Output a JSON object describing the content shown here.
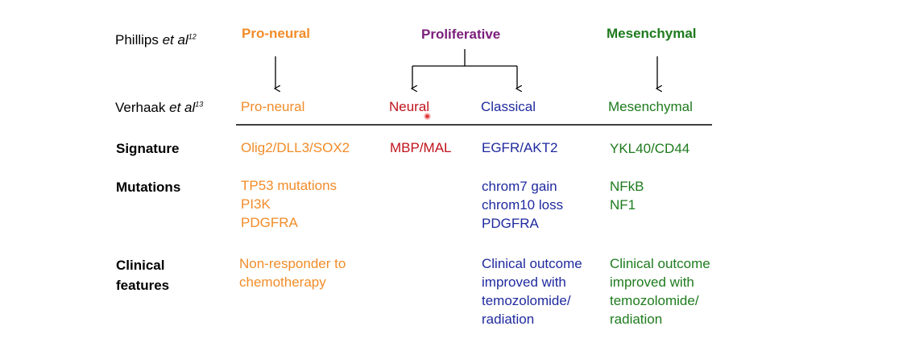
{
  "header": {
    "phillips": {
      "author": "Phillips ",
      "etal": "et al",
      "ref": "12"
    },
    "verhaak": {
      "author": "Verhaak ",
      "etal": "et al",
      "ref": "13"
    }
  },
  "phillips_classes": {
    "proneural": "Pro-neural",
    "proliferative": "Proliferative",
    "mesenchymal": "Mesenchymal"
  },
  "verhaak_classes": {
    "proneural": "Pro-neural",
    "neural": "Neural",
    "classical": "Classical",
    "mesenchymal": "Mesenchymal"
  },
  "row_labels": {
    "signature": "Signature",
    "mutations": "Mutations",
    "clinical_1": "Clinical",
    "clinical_2": "features"
  },
  "signature": {
    "proneural": "Olig2/DLL3/SOX2",
    "neural": "MBP/MAL",
    "classical": "EGFR/AKT2",
    "mesenchymal": "YKL40/CD44"
  },
  "mutations": {
    "proneural": [
      "TP53 mutations",
      "PI3K",
      "PDGFRA"
    ],
    "classical": [
      "chrom7 gain",
      "chrom10 loss",
      "PDGFRA"
    ],
    "mesenchymal": [
      "NFkB",
      "NF1"
    ]
  },
  "clinical": {
    "proneural": [
      "Non-responder to",
      "chemotherapy"
    ],
    "classical": [
      "Clinical outcome",
      "improved with",
      "temozolomide/",
      "radiation"
    ],
    "mesenchymal": [
      "Clinical outcome",
      "improved with",
      "temozolomide/",
      "radiation"
    ]
  },
  "colors": {
    "proneural": "#f28c28",
    "proliferative": "#7b1e7b",
    "neural": "#c0141c",
    "classical": "#1f2a9e",
    "mesenchymal": "#1e7b1e"
  }
}
